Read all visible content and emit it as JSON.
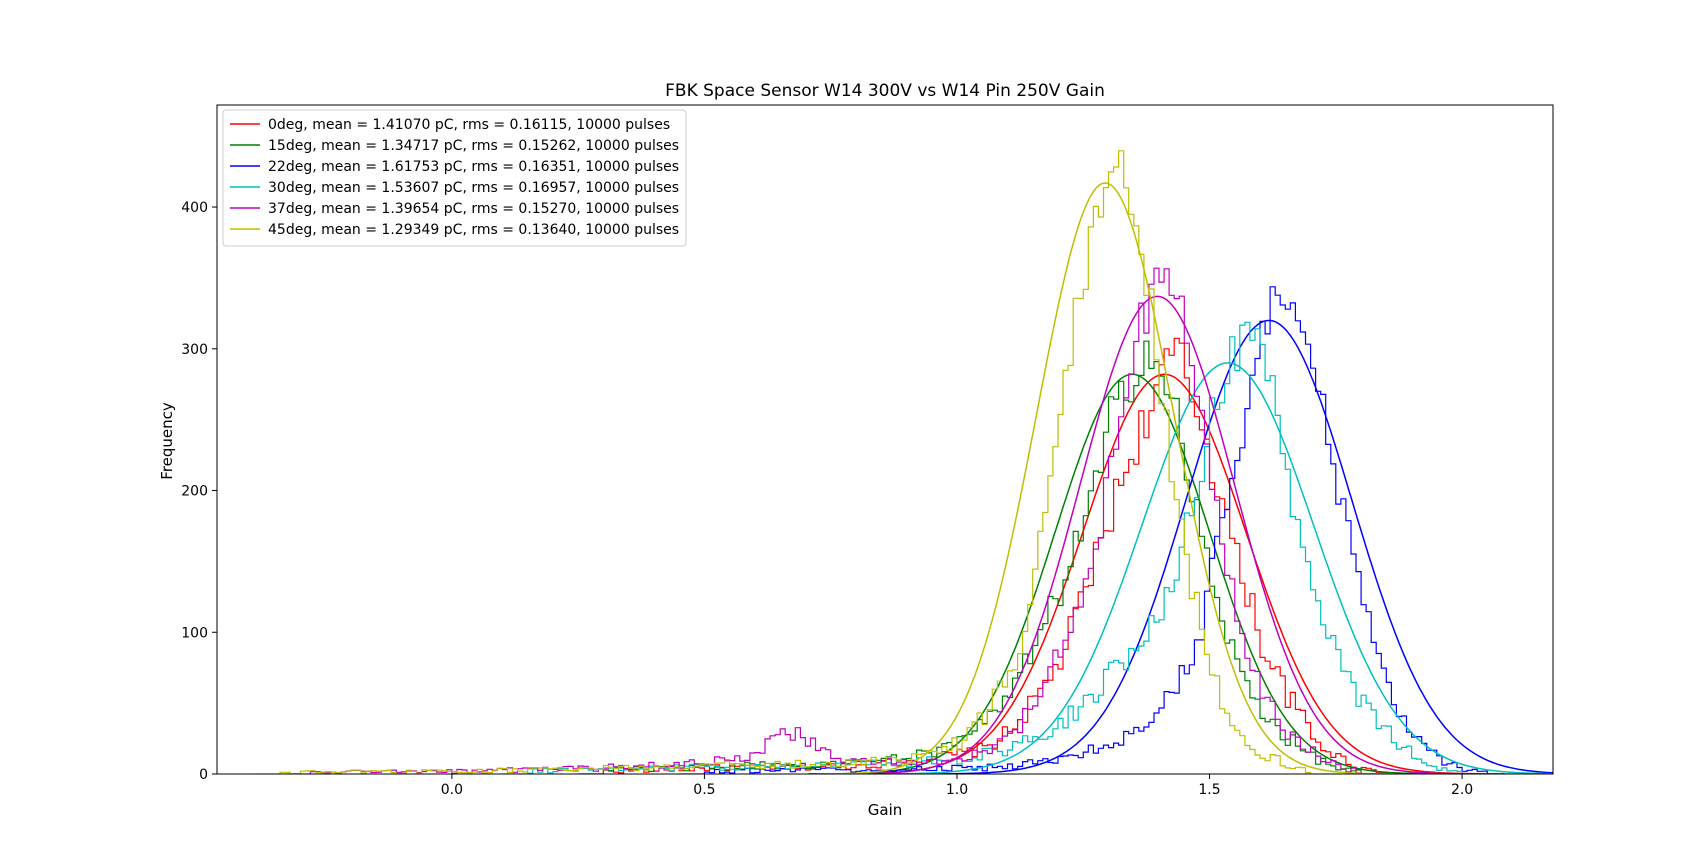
{
  "chart_data": {
    "type": "histogram",
    "title": "FBK Space Sensor W14 300V vs W14 Pin 250V Gain",
    "xlabel": "Gain",
    "ylabel": "Frequency",
    "xlim": [
      -0.465,
      2.18
    ],
    "ylim": [
      0,
      472
    ],
    "xticks": [
      0.0,
      0.5,
      1.0,
      1.5,
      2.0
    ],
    "xtick_labels": [
      "0.0",
      "0.5",
      "1.0",
      "1.5",
      "2.0"
    ],
    "yticks": [
      0,
      100,
      200,
      300,
      400
    ],
    "ytick_labels": [
      "0",
      "100",
      "200",
      "300",
      "400"
    ],
    "grid": false,
    "legend_position": "upper left",
    "series": [
      {
        "name": "0deg, mean = 1.41070 pC, rms = 0.16115, 10000 pulses",
        "color": "#ff0000",
        "fit": {
          "mean": 1.4107,
          "sigma": 0.16115,
          "peak": 282
        },
        "hist": [
          [
            0.3,
            2
          ],
          [
            0.4,
            3
          ],
          [
            0.5,
            4
          ],
          [
            0.6,
            5
          ],
          [
            0.7,
            5
          ],
          [
            0.8,
            6
          ],
          [
            0.9,
            9
          ],
          [
            1.0,
            14
          ],
          [
            1.05,
            18
          ],
          [
            1.1,
            30
          ],
          [
            1.15,
            52
          ],
          [
            1.2,
            80
          ],
          [
            1.25,
            130
          ],
          [
            1.3,
            185
          ],
          [
            1.33,
            215
          ],
          [
            1.35,
            235
          ],
          [
            1.38,
            260
          ],
          [
            1.4,
            278
          ],
          [
            1.43,
            300
          ],
          [
            1.45,
            275
          ],
          [
            1.48,
            250
          ],
          [
            1.5,
            220
          ],
          [
            1.53,
            180
          ],
          [
            1.55,
            150
          ],
          [
            1.58,
            120
          ],
          [
            1.6,
            90
          ],
          [
            1.63,
            70
          ],
          [
            1.65,
            55
          ],
          [
            1.68,
            40
          ],
          [
            1.7,
            25
          ],
          [
            1.75,
            12
          ],
          [
            1.8,
            4
          ],
          [
            1.85,
            1
          ]
        ]
      },
      {
        "name": "15deg, mean = 1.34717 pC, rms = 0.15262, 10000 pulses",
        "color": "#008000",
        "fit": {
          "mean": 1.34717,
          "sigma": 0.15262,
          "peak": 282
        },
        "hist": [
          [
            0.3,
            3
          ],
          [
            0.4,
            4
          ],
          [
            0.5,
            5
          ],
          [
            0.6,
            6
          ],
          [
            0.7,
            6
          ],
          [
            0.8,
            8
          ],
          [
            0.9,
            12
          ],
          [
            0.95,
            15
          ],
          [
            1.0,
            22
          ],
          [
            1.05,
            35
          ],
          [
            1.1,
            55
          ],
          [
            1.15,
            90
          ],
          [
            1.2,
            130
          ],
          [
            1.25,
            180
          ],
          [
            1.28,
            215
          ],
          [
            1.3,
            250
          ],
          [
            1.33,
            270
          ],
          [
            1.35,
            290
          ],
          [
            1.38,
            305
          ],
          [
            1.4,
            280
          ],
          [
            1.43,
            250
          ],
          [
            1.45,
            215
          ],
          [
            1.48,
            170
          ],
          [
            1.5,
            130
          ],
          [
            1.53,
            100
          ],
          [
            1.55,
            75
          ],
          [
            1.6,
            45
          ],
          [
            1.65,
            25
          ],
          [
            1.7,
            12
          ],
          [
            1.75,
            4
          ],
          [
            1.8,
            1
          ]
        ]
      },
      {
        "name": "22deg, mean = 1.61753 pC, rms = 0.16351, 10000 pulses",
        "color": "#0000ff",
        "fit": {
          "mean": 1.61753,
          "sigma": 0.16351,
          "peak": 320
        },
        "hist": [
          [
            0.5,
            2
          ],
          [
            0.7,
            3
          ],
          [
            0.9,
            3
          ],
          [
            1.0,
            4
          ],
          [
            1.1,
            5
          ],
          [
            1.15,
            8
          ],
          [
            1.2,
            12
          ],
          [
            1.25,
            15
          ],
          [
            1.3,
            22
          ],
          [
            1.35,
            30
          ],
          [
            1.4,
            45
          ],
          [
            1.45,
            75
          ],
          [
            1.48,
            100
          ],
          [
            1.5,
            140
          ],
          [
            1.53,
            190
          ],
          [
            1.55,
            230
          ],
          [
            1.58,
            270
          ],
          [
            1.6,
            310
          ],
          [
            1.62,
            335
          ],
          [
            1.65,
            345
          ],
          [
            1.68,
            320
          ],
          [
            1.7,
            290
          ],
          [
            1.73,
            240
          ],
          [
            1.75,
            200
          ],
          [
            1.78,
            150
          ],
          [
            1.8,
            120
          ],
          [
            1.83,
            90
          ],
          [
            1.85,
            60
          ],
          [
            1.88,
            40
          ],
          [
            1.9,
            25
          ],
          [
            1.95,
            10
          ],
          [
            2.0,
            3
          ],
          [
            2.05,
            1
          ]
        ]
      },
      {
        "name": "30deg, mean = 1.53607 pC, rms = 0.16957, 10000 pulses",
        "color": "#00bfbf",
        "fit": {
          "mean": 1.53607,
          "sigma": 0.16957,
          "peak": 290
        },
        "hist": [
          [
            0.15,
            2
          ],
          [
            0.3,
            4
          ],
          [
            0.5,
            5
          ],
          [
            0.7,
            6
          ],
          [
            0.9,
            8
          ],
          [
            1.0,
            10
          ],
          [
            1.1,
            18
          ],
          [
            1.15,
            25
          ],
          [
            1.2,
            35
          ],
          [
            1.25,
            50
          ],
          [
            1.3,
            70
          ],
          [
            1.35,
            90
          ],
          [
            1.4,
            120
          ],
          [
            1.43,
            150
          ],
          [
            1.45,
            180
          ],
          [
            1.48,
            220
          ],
          [
            1.5,
            250
          ],
          [
            1.53,
            280
          ],
          [
            1.55,
            300
          ],
          [
            1.58,
            310
          ],
          [
            1.6,
            290
          ],
          [
            1.63,
            250
          ],
          [
            1.65,
            210
          ],
          [
            1.68,
            170
          ],
          [
            1.7,
            140
          ],
          [
            1.73,
            100
          ],
          [
            1.75,
            80
          ],
          [
            1.8,
            50
          ],
          [
            1.85,
            30
          ],
          [
            1.9,
            12
          ],
          [
            1.95,
            4
          ],
          [
            2.0,
            1
          ]
        ]
      },
      {
        "name": "37deg, mean = 1.39654 pC, rms = 0.15270, 10000 pulses",
        "color": "#bf00bf",
        "fit": {
          "mean": 1.39654,
          "sigma": 0.1527,
          "peak": 337
        },
        "hist": [
          [
            -0.28,
            1
          ],
          [
            0.0,
            2
          ],
          [
            0.2,
            3
          ],
          [
            0.4,
            6
          ],
          [
            0.5,
            8
          ],
          [
            0.6,
            15
          ],
          [
            0.65,
            30
          ],
          [
            0.7,
            25
          ],
          [
            0.75,
            12
          ],
          [
            0.8,
            8
          ],
          [
            0.9,
            8
          ],
          [
            1.0,
            10
          ],
          [
            1.05,
            15
          ],
          [
            1.1,
            25
          ],
          [
            1.15,
            50
          ],
          [
            1.2,
            90
          ],
          [
            1.25,
            140
          ],
          [
            1.28,
            180
          ],
          [
            1.3,
            220
          ],
          [
            1.33,
            280
          ],
          [
            1.35,
            320
          ],
          [
            1.38,
            335
          ],
          [
            1.4,
            360
          ],
          [
            1.43,
            340
          ],
          [
            1.45,
            310
          ],
          [
            1.48,
            260
          ],
          [
            1.5,
            210
          ],
          [
            1.53,
            150
          ],
          [
            1.55,
            110
          ],
          [
            1.58,
            80
          ],
          [
            1.6,
            55
          ],
          [
            1.65,
            30
          ],
          [
            1.7,
            15
          ],
          [
            1.75,
            5
          ],
          [
            1.8,
            1
          ]
        ]
      },
      {
        "name": "45deg, mean = 1.29349 pC, rms = 0.13640, 10000 pulses",
        "color": "#bfbf00",
        "fit": {
          "mean": 1.29349,
          "sigma": 0.1364,
          "peak": 417
        },
        "hist": [
          [
            -0.34,
            1
          ],
          [
            0.0,
            2
          ],
          [
            0.3,
            4
          ],
          [
            0.5,
            6
          ],
          [
            0.7,
            7
          ],
          [
            0.8,
            8
          ],
          [
            0.9,
            10
          ],
          [
            0.95,
            15
          ],
          [
            1.0,
            22
          ],
          [
            1.05,
            40
          ],
          [
            1.1,
            70
          ],
          [
            1.13,
            100
          ],
          [
            1.15,
            140
          ],
          [
            1.18,
            200
          ],
          [
            1.2,
            250
          ],
          [
            1.22,
            300
          ],
          [
            1.25,
            360
          ],
          [
            1.28,
            410
          ],
          [
            1.3,
            430
          ],
          [
            1.32,
            450
          ],
          [
            1.35,
            400
          ],
          [
            1.38,
            330
          ],
          [
            1.4,
            260
          ],
          [
            1.43,
            200
          ],
          [
            1.45,
            150
          ],
          [
            1.48,
            100
          ],
          [
            1.5,
            70
          ],
          [
            1.53,
            45
          ],
          [
            1.55,
            30
          ],
          [
            1.6,
            15
          ],
          [
            1.65,
            6
          ],
          [
            1.7,
            2
          ]
        ]
      }
    ]
  }
}
